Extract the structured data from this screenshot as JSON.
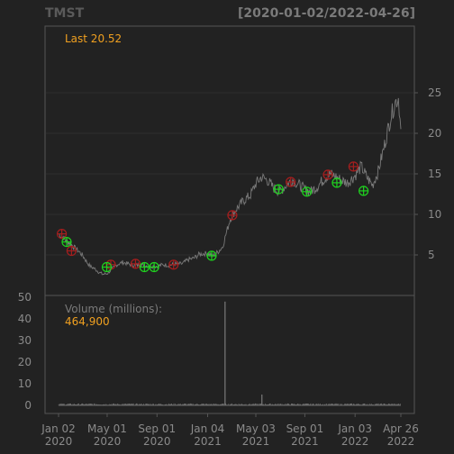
{
  "chart_data": [
    {
      "type": "line",
      "subtype": "price-with-trade-markers",
      "title": "TMST",
      "date_range_label": "[2020-01-02/2022-04-26]",
      "last_label": "Last 20.52",
      "ylim": [
        0,
        26
      ],
      "y_ticks": [
        5,
        10,
        15,
        20,
        25
      ],
      "y_tick_labels": [
        "5",
        "10",
        "15",
        "20",
        "25"
      ],
      "x_domain": [
        "2020-01-02",
        "2022-04-26"
      ],
      "x_ticks": [
        "2020-01-02",
        "2020-05-01",
        "2020-09-01",
        "2021-01-04",
        "2021-05-03",
        "2021-09-01",
        "2022-01-03",
        "2022-04-26"
      ],
      "x_tick_labels": [
        {
          "line1": "Jan 02",
          "line2": "2020"
        },
        {
          "line1": "May 01",
          "line2": "2020"
        },
        {
          "line1": "Sep 01",
          "line2": "2020"
        },
        {
          "line1": "Jan 04",
          "line2": "2021"
        },
        {
          "line1": "May 03",
          "line2": "2021"
        },
        {
          "line1": "Sep 01",
          "line2": "2021"
        },
        {
          "line1": "Jan 03",
          "line2": "2022"
        },
        {
          "line1": "Apr 26",
          "line2": "2022"
        }
      ],
      "grid": true,
      "colors": {
        "price": "#7a7a7a",
        "buy": "#1fd11f",
        "sell": "#a51e1e",
        "accent": "#f0a020",
        "text": "#8a8a8a"
      },
      "series_points": [
        [
          "2020-01-02",
          7.6
        ],
        [
          "2020-01-10",
          7.3
        ],
        [
          "2020-01-20",
          6.8
        ],
        [
          "2020-01-31",
          6.4
        ],
        [
          "2020-02-10",
          5.9
        ],
        [
          "2020-02-20",
          5.5
        ],
        [
          "2020-03-02",
          4.9
        ],
        [
          "2020-03-12",
          4.1
        ],
        [
          "2020-03-20",
          3.6
        ],
        [
          "2020-03-31",
          3.3
        ],
        [
          "2020-04-10",
          2.9
        ],
        [
          "2020-04-20",
          2.6
        ],
        [
          "2020-05-01",
          2.7
        ],
        [
          "2020-05-12",
          3.2
        ],
        [
          "2020-05-25",
          3.8
        ],
        [
          "2020-06-08",
          4.1
        ],
        [
          "2020-06-22",
          3.9
        ],
        [
          "2020-07-06",
          3.7
        ],
        [
          "2020-07-20",
          3.8
        ],
        [
          "2020-08-03",
          3.7
        ],
        [
          "2020-08-17",
          3.6
        ],
        [
          "2020-09-01",
          3.6
        ],
        [
          "2020-09-15",
          3.8
        ],
        [
          "2020-10-01",
          3.7
        ],
        [
          "2020-10-15",
          3.9
        ],
        [
          "2020-11-02",
          3.9
        ],
        [
          "2020-11-16",
          4.4
        ],
        [
          "2020-12-01",
          4.6
        ],
        [
          "2020-12-15",
          5.1
        ],
        [
          "2021-01-04",
          5.2
        ],
        [
          "2021-01-18",
          4.9
        ],
        [
          "2021-02-01",
          5.5
        ],
        [
          "2021-02-10",
          6.0
        ],
        [
          "2021-02-18",
          7.5
        ],
        [
          "2021-03-01",
          9.5
        ],
        [
          "2021-03-15",
          10.6
        ],
        [
          "2021-04-01",
          11.6
        ],
        [
          "2021-04-20",
          12.4
        ],
        [
          "2021-05-03",
          13.8
        ],
        [
          "2021-05-17",
          14.6
        ],
        [
          "2021-06-01",
          14.2
        ],
        [
          "2021-06-15",
          13.3
        ],
        [
          "2021-07-01",
          12.8
        ],
        [
          "2021-07-15",
          13.5
        ],
        [
          "2021-08-02",
          14.3
        ],
        [
          "2021-08-16",
          13.7
        ],
        [
          "2021-09-01",
          13.1
        ],
        [
          "2021-09-15",
          12.8
        ],
        [
          "2021-10-01",
          13.4
        ],
        [
          "2021-10-15",
          14.2
        ],
        [
          "2021-11-01",
          15.0
        ],
        [
          "2021-11-15",
          14.7
        ],
        [
          "2021-12-01",
          14.2
        ],
        [
          "2021-12-15",
          13.9
        ],
        [
          "2022-01-03",
          14.8
        ],
        [
          "2022-01-18",
          15.9
        ],
        [
          "2022-02-01",
          14.6
        ],
        [
          "2022-02-15",
          13.6
        ],
        [
          "2022-03-01",
          15.3
        ],
        [
          "2022-03-15",
          18.2
        ],
        [
          "2022-04-01",
          22.0
        ],
        [
          "2022-04-12",
          23.8
        ],
        [
          "2022-04-20",
          24.4
        ],
        [
          "2022-04-26",
          20.52
        ]
      ],
      "buy_signals": [
        [
          "2020-01-22",
          6.6
        ],
        [
          "2020-04-30",
          3.5
        ],
        [
          "2020-08-01",
          3.5
        ],
        [
          "2020-08-25",
          3.5
        ],
        [
          "2021-01-14",
          4.9
        ],
        [
          "2021-06-28",
          13.1
        ],
        [
          "2021-09-06",
          12.8
        ],
        [
          "2021-11-19",
          13.9
        ],
        [
          "2022-01-24",
          12.9
        ]
      ],
      "sell_signals": [
        [
          "2020-01-10",
          7.6
        ],
        [
          "2020-02-03",
          5.5
        ],
        [
          "2020-05-10",
          3.8
        ],
        [
          "2020-07-10",
          3.9
        ],
        [
          "2020-10-12",
          3.8
        ],
        [
          "2021-03-06",
          9.9
        ],
        [
          "2021-07-28",
          14.0
        ],
        [
          "2021-10-28",
          14.9
        ],
        [
          "2021-12-30",
          15.9
        ]
      ]
    },
    {
      "type": "bar",
      "title": "Volume (millions):",
      "last_value_label": "464,900",
      "ylim": [
        0,
        50
      ],
      "y_ticks": [
        0,
        10,
        20,
        30,
        40,
        50
      ],
      "y_tick_labels": [
        "0",
        "10",
        "20",
        "30",
        "40",
        "50"
      ],
      "spike": {
        "date": "2021-02-16",
        "value": 48
      },
      "secondary_spike": {
        "date": "2021-05-18",
        "value": 5
      },
      "baseline_volume": 0.5
    }
  ]
}
